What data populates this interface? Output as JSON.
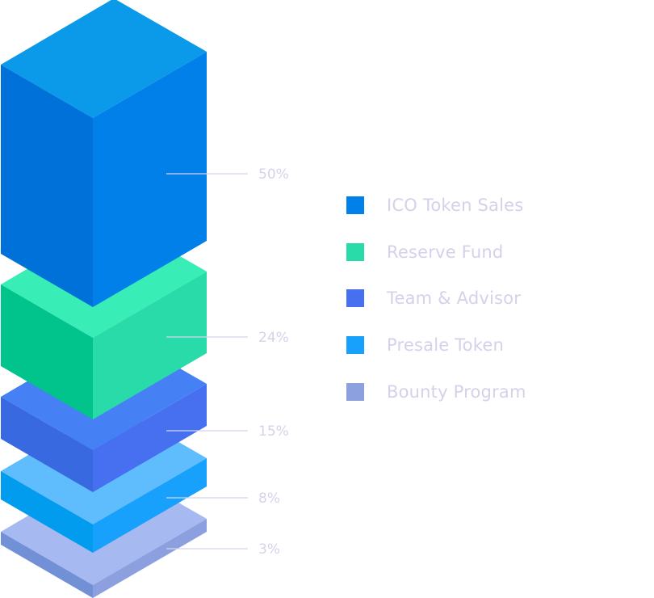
{
  "chart_data": {
    "type": "isometric-stacked-blocks",
    "title": "",
    "categories": [
      "ICO Token Sales",
      "Reserve Fund",
      "Team & Advisor",
      "Presale Token",
      "Bounty Program"
    ],
    "values": [
      50,
      24,
      15,
      8,
      3
    ],
    "value_labels": [
      "50%",
      "24%",
      "15%",
      "8%",
      "3%"
    ],
    "unit": "%",
    "legend_placement": "right",
    "colors": [
      "#0080e8",
      "#29dba8",
      "#4670ef",
      "#18a1fc",
      "#8ca0e0"
    ],
    "face_colors": [
      {
        "top": "#0a9ae9",
        "left": "#0071d8",
        "right": "#0080e8"
      },
      {
        "top": "#38edb6",
        "left": "#00c48c",
        "right": "#29dba8"
      },
      {
        "top": "#4581f5",
        "left": "#3869e0",
        "right": "#4670ef"
      },
      {
        "top": "#5fbdfe",
        "left": "#019ced",
        "right": "#18a1fc"
      },
      {
        "top": "#a6b9f1",
        "left": "#7290d6",
        "right": "#8ca0e0"
      }
    ]
  }
}
